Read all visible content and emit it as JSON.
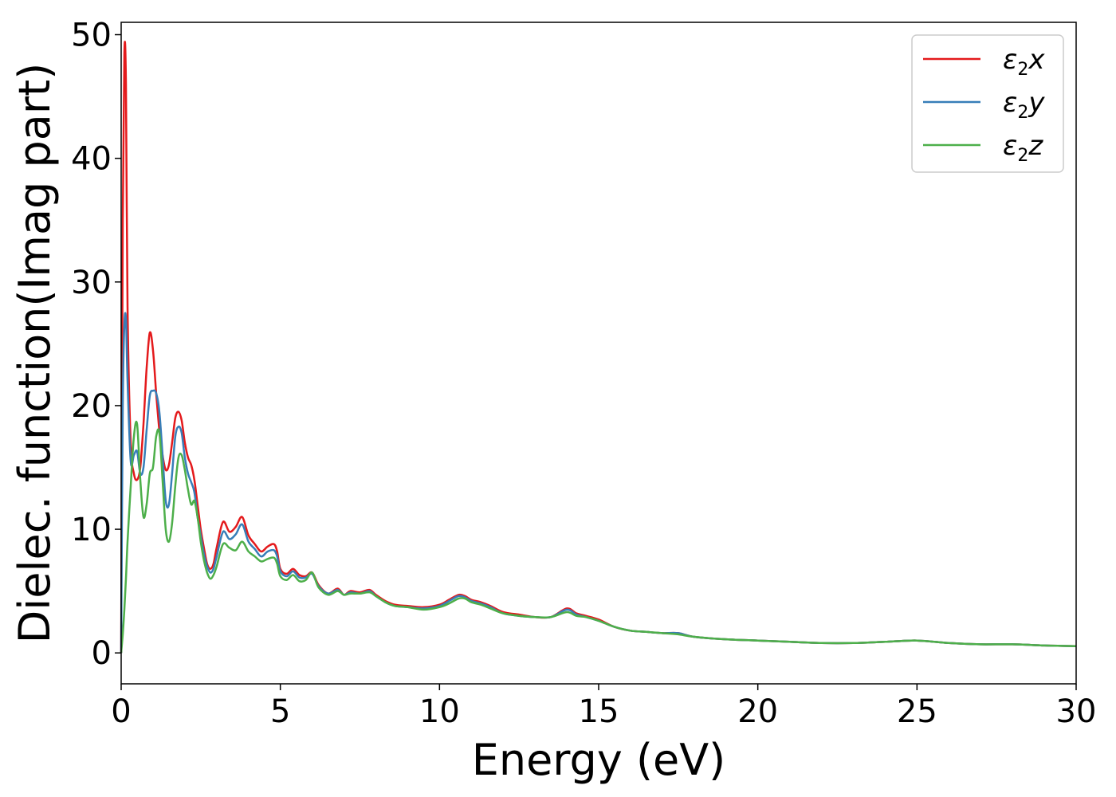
{
  "chart_data": {
    "type": "line",
    "title": "",
    "xlabel": "Energy (eV)",
    "ylabel": "Dielec. function(Imag part)",
    "xlim": [
      0,
      30
    ],
    "ylim": [
      -2.5,
      51
    ],
    "xticks": [
      "0",
      "5",
      "10",
      "15",
      "20",
      "25",
      "30"
    ],
    "yticks": [
      "0",
      "10",
      "20",
      "30",
      "40",
      "50"
    ],
    "grid": false,
    "legend_position": "top-right",
    "series": [
      {
        "name": "ε₂x",
        "name_base": "ε",
        "name_sub": "2",
        "name_suffix": "x",
        "color": "#e41a1c",
        "x": [
          0,
          0.05,
          0.1,
          0.15,
          0.2,
          0.3,
          0.4,
          0.5,
          0.6,
          0.7,
          0.8,
          0.9,
          1.0,
          1.1,
          1.2,
          1.3,
          1.4,
          1.5,
          1.6,
          1.7,
          1.8,
          1.9,
          2.0,
          2.1,
          2.2,
          2.3,
          2.4,
          2.5,
          2.6,
          2.7,
          2.8,
          2.9,
          3.0,
          3.2,
          3.4,
          3.6,
          3.8,
          4.0,
          4.2,
          4.4,
          4.6,
          4.8,
          4.9,
          5.0,
          5.2,
          5.4,
          5.6,
          5.8,
          6.0,
          6.2,
          6.5,
          6.8,
          7.0,
          7.2,
          7.5,
          7.8,
          8.0,
          8.3,
          8.6,
          9.0,
          9.5,
          10.0,
          10.3,
          10.6,
          10.8,
          11.0,
          11.3,
          11.6,
          12.0,
          12.5,
          13.0,
          13.5,
          14.0,
          14.3,
          14.6,
          15.0,
          15.5,
          16.0,
          16.5,
          17.0,
          17.5,
          18.0,
          19.0,
          20.0,
          21.0,
          22.0,
          23.0,
          24.0,
          25.0,
          26.0,
          27.0,
          28.0,
          29.0,
          30.0
        ],
        "y": [
          0,
          35,
          48.5,
          46,
          28,
          17,
          14.5,
          14,
          15,
          18.5,
          23,
          25.9,
          24.5,
          21,
          18,
          16,
          14.8,
          15.2,
          17,
          19,
          19.5,
          18.8,
          17,
          15.8,
          15.2,
          14,
          12,
          10,
          8.5,
          7.2,
          6.8,
          7.2,
          8.5,
          10.6,
          9.8,
          10.2,
          11,
          9.5,
          8.8,
          8.2,
          8.6,
          8.8,
          8.2,
          6.8,
          6.4,
          6.8,
          6.3,
          6.2,
          6.5,
          5.5,
          4.8,
          5.2,
          4.7,
          5.0,
          4.9,
          5.1,
          4.7,
          4.2,
          3.9,
          3.8,
          3.7,
          3.9,
          4.3,
          4.7,
          4.6,
          4.3,
          4.1,
          3.8,
          3.3,
          3.1,
          2.9,
          2.9,
          3.6,
          3.2,
          3.0,
          2.7,
          2.1,
          1.8,
          1.7,
          1.6,
          1.6,
          1.3,
          1.1,
          1.0,
          0.9,
          0.8,
          0.8,
          0.9,
          1.0,
          0.8,
          0.7,
          0.7,
          0.6,
          0.55
        ]
      },
      {
        "name": "ε₂y",
        "name_base": "ε",
        "name_sub": "2",
        "name_suffix": "y",
        "color": "#377eb8",
        "x": [
          0,
          0.05,
          0.1,
          0.15,
          0.2,
          0.3,
          0.4,
          0.5,
          0.6,
          0.7,
          0.8,
          0.9,
          1.0,
          1.1,
          1.2,
          1.3,
          1.4,
          1.5,
          1.6,
          1.7,
          1.8,
          1.9,
          2.0,
          2.1,
          2.2,
          2.3,
          2.4,
          2.5,
          2.6,
          2.7,
          2.8,
          2.9,
          3.0,
          3.2,
          3.4,
          3.6,
          3.8,
          4.0,
          4.2,
          4.4,
          4.6,
          4.8,
          4.9,
          5.0,
          5.2,
          5.4,
          5.6,
          5.8,
          6.0,
          6.2,
          6.5,
          6.8,
          7.0,
          7.2,
          7.5,
          7.8,
          8.0,
          8.3,
          8.6,
          9.0,
          9.5,
          10.0,
          10.3,
          10.6,
          10.8,
          11.0,
          11.3,
          11.6,
          12.0,
          12.5,
          13.0,
          13.5,
          14.0,
          14.3,
          14.6,
          15.0,
          15.5,
          16.0,
          16.5,
          17.0,
          17.5,
          18.0,
          19.0,
          20.0,
          21.0,
          22.0,
          23.0,
          24.0,
          25.0,
          26.0,
          27.0,
          28.0,
          29.0,
          30.0
        ],
        "y": [
          0,
          20,
          26.5,
          27,
          22,
          15.5,
          16,
          16.3,
          14.5,
          15,
          18,
          20.8,
          21.2,
          21,
          19.5,
          16,
          12.3,
          12,
          14.5,
          17.5,
          18.3,
          17.8,
          15.8,
          14.5,
          13.8,
          13,
          11,
          9.5,
          8,
          7,
          6.5,
          6.8,
          7.8,
          9.8,
          9.2,
          9.6,
          10.4,
          9.0,
          8.4,
          7.8,
          8.2,
          8.3,
          7.8,
          6.6,
          6.2,
          6.6,
          6.1,
          6.1,
          6.4,
          5.4,
          4.8,
          5.1,
          4.7,
          4.9,
          4.8,
          5.0,
          4.6,
          4.1,
          3.8,
          3.7,
          3.6,
          3.8,
          4.2,
          4.6,
          4.5,
          4.2,
          4.0,
          3.7,
          3.2,
          3.0,
          2.9,
          2.9,
          3.5,
          3.1,
          2.9,
          2.6,
          2.1,
          1.8,
          1.7,
          1.6,
          1.6,
          1.3,
          1.1,
          1.0,
          0.9,
          0.8,
          0.8,
          0.9,
          1.0,
          0.8,
          0.7,
          0.7,
          0.6,
          0.55
        ]
      },
      {
        "name": "ε₂z",
        "name_base": "ε",
        "name_sub": "2",
        "name_suffix": "z",
        "color": "#4daf4a",
        "x": [
          0,
          0.05,
          0.1,
          0.15,
          0.2,
          0.3,
          0.4,
          0.5,
          0.6,
          0.7,
          0.8,
          0.9,
          1.0,
          1.1,
          1.2,
          1.3,
          1.4,
          1.5,
          1.6,
          1.7,
          1.8,
          1.9,
          2.0,
          2.1,
          2.2,
          2.3,
          2.4,
          2.5,
          2.6,
          2.7,
          2.8,
          2.9,
          3.0,
          3.2,
          3.4,
          3.6,
          3.8,
          4.0,
          4.2,
          4.4,
          4.6,
          4.8,
          4.9,
          5.0,
          5.2,
          5.4,
          5.6,
          5.8,
          6.0,
          6.2,
          6.5,
          6.8,
          7.0,
          7.2,
          7.5,
          7.8,
          8.0,
          8.3,
          8.6,
          9.0,
          9.5,
          10.0,
          10.3,
          10.6,
          10.8,
          11.0,
          11.3,
          11.6,
          12.0,
          12.5,
          13.0,
          13.5,
          14.0,
          14.3,
          14.6,
          15.0,
          15.5,
          16.0,
          16.5,
          17.0,
          17.5,
          18.0,
          19.0,
          20.0,
          21.0,
          22.0,
          23.0,
          24.0,
          25.0,
          26.0,
          27.0,
          28.0,
          29.0,
          30.0
        ],
        "y": [
          0,
          1.5,
          3.5,
          6,
          9,
          13.5,
          17.5,
          18.5,
          14,
          11,
          12,
          14.5,
          15,
          17.5,
          17.8,
          14,
          10,
          9,
          10.5,
          13.5,
          15.8,
          16,
          14.8,
          13.2,
          12,
          12.3,
          11,
          9,
          7.5,
          6.5,
          6,
          6.3,
          7,
          8.8,
          8.5,
          8.3,
          9,
          8.2,
          7.8,
          7.4,
          7.6,
          7.7,
          7.2,
          6.2,
          5.9,
          6.3,
          5.8,
          5.9,
          6.5,
          5.3,
          4.7,
          5.0,
          4.7,
          4.8,
          4.8,
          4.9,
          4.6,
          4.1,
          3.8,
          3.7,
          3.5,
          3.7,
          4.0,
          4.4,
          4.4,
          4.1,
          3.9,
          3.6,
          3.2,
          3.0,
          2.9,
          2.9,
          3.3,
          3.0,
          2.9,
          2.6,
          2.1,
          1.8,
          1.7,
          1.6,
          1.5,
          1.3,
          1.1,
          1.0,
          0.9,
          0.8,
          0.8,
          0.9,
          1.0,
          0.8,
          0.7,
          0.7,
          0.6,
          0.55
        ]
      }
    ]
  }
}
